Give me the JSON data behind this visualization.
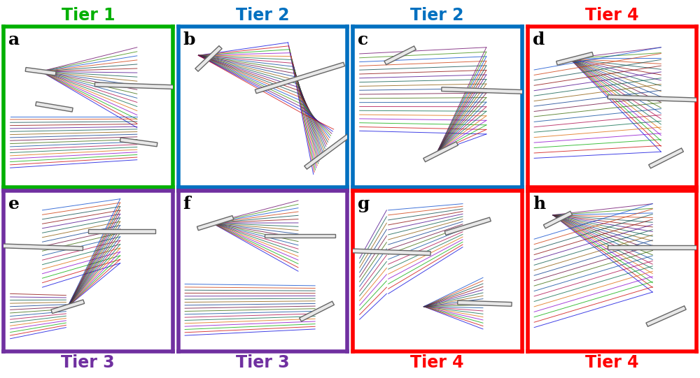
{
  "fig_width": 10.0,
  "fig_height": 5.41,
  "background": "#ffffff",
  "panels": [
    {
      "label": "a",
      "tier": "Tier 1",
      "tier_color": "#00b000",
      "box_color": "#00b000",
      "col": 0,
      "row": 0
    },
    {
      "label": "b",
      "tier": "Tier 2",
      "tier_color": "#0070c0",
      "box_color": "#0070c0",
      "col": 1,
      "row": 0
    },
    {
      "label": "c",
      "tier": "Tier 2",
      "tier_color": "#0070c0",
      "box_color": "#0070c0",
      "col": 2,
      "row": 0
    },
    {
      "label": "d",
      "tier": "Tier 4",
      "tier_color": "#ff0000",
      "box_color": "#ff0000",
      "col": 3,
      "row": 0
    },
    {
      "label": "e",
      "tier": "Tier 3",
      "tier_color": "#7030a0",
      "box_color": "#7030a0",
      "col": 0,
      "row": 1
    },
    {
      "label": "f",
      "tier": "Tier 3",
      "tier_color": "#7030a0",
      "box_color": "#7030a0",
      "col": 1,
      "row": 1
    },
    {
      "label": "g",
      "tier": "Tier 4",
      "tier_color": "#ff0000",
      "box_color": "#ff0000",
      "col": 2,
      "row": 1
    },
    {
      "label": "h",
      "tier": "Tier 4",
      "tier_color": "#ff0000",
      "box_color": "#ff0000",
      "col": 3,
      "row": 1
    }
  ],
  "ray_colors_rgb": [
    "#0000cc",
    "#cc0000",
    "#00aa00",
    "#6600aa",
    "#cc6600",
    "#006666",
    "#aa0055",
    "#004499",
    "#3300aa",
    "#aa3300",
    "#336600",
    "#660033",
    "#003366",
    "#553300",
    "#005533",
    "#330055"
  ],
  "n_rays": 20,
  "tier_label_fontsize": 17,
  "panel_label_fontsize": 18
}
